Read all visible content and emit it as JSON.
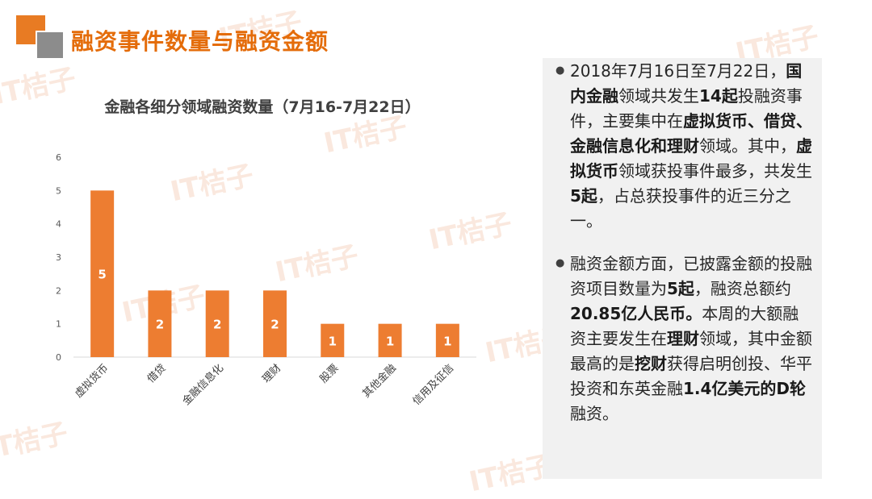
{
  "watermark": "IT桔子",
  "header": {
    "title": "融资事件数量与融资金额"
  },
  "chart_data": {
    "type": "bar",
    "title": "金融各细分领域融资数量（7月16-7月22日）",
    "categories": [
      "虚拟货币",
      "借贷",
      "金融信息化",
      "理财",
      "股票",
      "其他金融",
      "信用及征信"
    ],
    "values": [
      5,
      2,
      2,
      2,
      1,
      1,
      1
    ],
    "ylim": [
      0,
      6
    ],
    "yticks": [
      0,
      1,
      2,
      3,
      4,
      5,
      6
    ],
    "grid": false,
    "legend": "none",
    "bar_color": "#ed7d31",
    "label_color": "#ffffff"
  },
  "text": {
    "p1": {
      "s1": "2018年7月16日至7月22日，",
      "s2": "国内金融",
      "s3": "领域共发生",
      "s4": "14起",
      "s5": "投融资事件，主要集中在",
      "s6": "虚拟货币、借贷、金融信息化和理财",
      "s7": "领域。其中，",
      "s8": "虚拟货币",
      "s9": "领域获投事件最多，共发生",
      "s10": "5起",
      "s11": "，占总获投事件的近三分之一。"
    },
    "p2": {
      "s1": "融资金额方面，已披露金额的投融资项目数量为",
      "s2": "5起",
      "s3": "，融资总额约",
      "s4": "20.85亿人民币。",
      "s5": "本周的大额融资主要发生在",
      "s6": "理财",
      "s7": "领域，其中金额最高的是",
      "s8": "挖财",
      "s9": "获得启明创投、华平投资和东英金融",
      "s10": "1.4亿美元的D轮",
      "s11": "融资。"
    },
    "bullet_symbol": "●"
  }
}
